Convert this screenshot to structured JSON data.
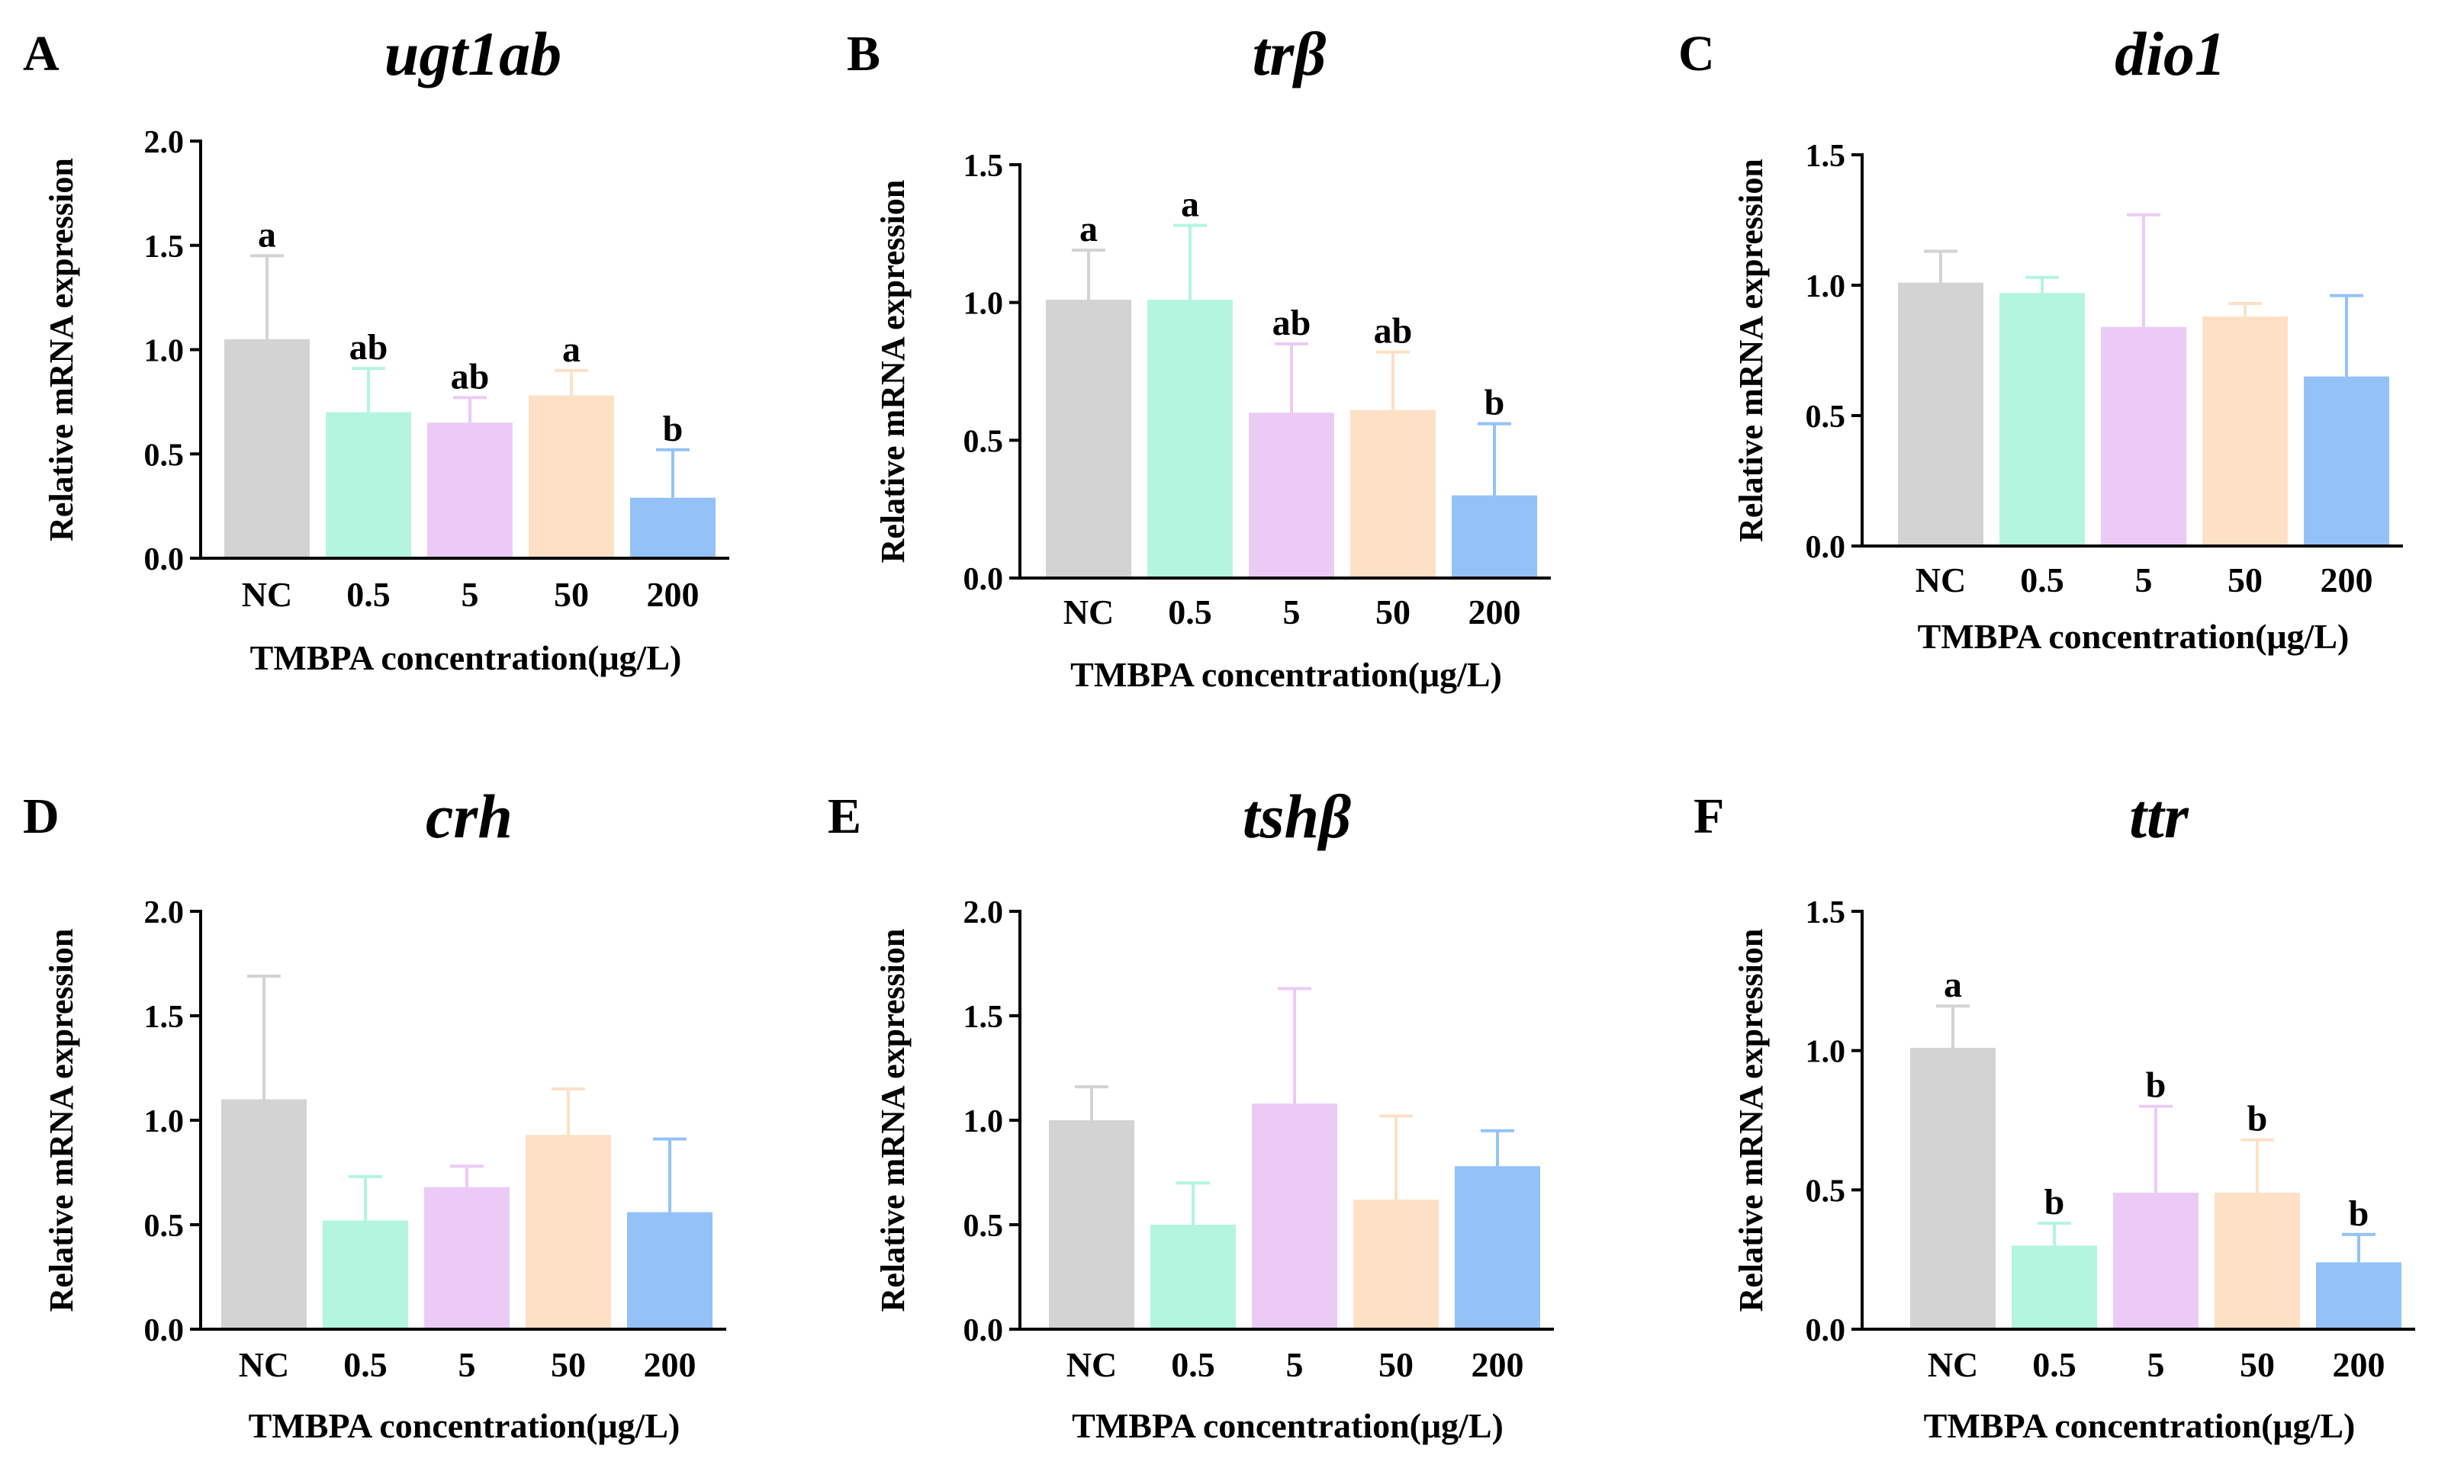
{
  "figure": {
    "colors": [
      "#d3d3d3",
      "#b3f5df",
      "#ebcbf6",
      "#fde0c6",
      "#94c2f8"
    ],
    "panels": [
      {
        "label": "A",
        "title": "ugt1ab"
      },
      {
        "label": "B",
        "title": "trβ"
      },
      {
        "label": "C",
        "title": "dio1"
      },
      {
        "label": "D",
        "title": "crh"
      },
      {
        "label": "E",
        "title": "tshβ"
      },
      {
        "label": "F",
        "title": "ttr"
      }
    ]
  },
  "chart_data": [
    {
      "type": "bar",
      "title": "ugt1ab",
      "categories": [
        "NC",
        "0.5",
        "5",
        "50",
        "200"
      ],
      "values": [
        1.05,
        0.7,
        0.65,
        0.78,
        0.29
      ],
      "errors": [
        0.4,
        0.21,
        0.12,
        0.12,
        0.23
      ],
      "significance": [
        "a",
        "ab",
        "ab",
        "a",
        "b"
      ],
      "xlabel": "TMBPA concentration(μg/L)",
      "ylabel": "Relative mRNA expression",
      "ylim": [
        0,
        2.0
      ],
      "yticks": [
        "0.0",
        "0.5",
        "1.0",
        "1.5",
        "2.0"
      ]
    },
    {
      "type": "bar",
      "title": "trβ",
      "categories": [
        "NC",
        "0.5",
        "5",
        "50",
        "200"
      ],
      "values": [
        1.01,
        1.01,
        0.6,
        0.61,
        0.3
      ],
      "errors": [
        0.18,
        0.27,
        0.25,
        0.21,
        0.26
      ],
      "significance": [
        "a",
        "a",
        "ab",
        "ab",
        "b"
      ],
      "xlabel": "TMBPA concentration(μg/L)",
      "ylabel": "Relative mRNA expression",
      "ylim": [
        0,
        1.5
      ],
      "yticks": [
        "0.0",
        "0.5",
        "1.0",
        "1.5"
      ]
    },
    {
      "type": "bar",
      "title": "dio1",
      "categories": [
        "NC",
        "0.5",
        "5",
        "50",
        "200"
      ],
      "values": [
        1.01,
        0.97,
        0.84,
        0.88,
        0.65
      ],
      "errors": [
        0.12,
        0.06,
        0.43,
        0.05,
        0.31
      ],
      "significance": [
        "",
        "",
        "",
        "",
        ""
      ],
      "xlabel": "TMBPA concentration(μg/L)",
      "ylabel": "Relative mRNA expression",
      "ylim": [
        0,
        1.5
      ],
      "yticks": [
        "0.0",
        "0.5",
        "1.0",
        "1.5"
      ]
    },
    {
      "type": "bar",
      "title": "crh",
      "categories": [
        "NC",
        "0.5",
        "5",
        "50",
        "200"
      ],
      "values": [
        1.1,
        0.52,
        0.68,
        0.93,
        0.56
      ],
      "errors": [
        0.59,
        0.21,
        0.1,
        0.22,
        0.35
      ],
      "significance": [
        "",
        "",
        "",
        "",
        ""
      ],
      "xlabel": "TMBPA concentration(μg/L)",
      "ylabel": "Relative mRNA expression",
      "ylim": [
        0,
        2.0
      ],
      "yticks": [
        "0.0",
        "0.5",
        "1.0",
        "1.5",
        "2.0"
      ]
    },
    {
      "type": "bar",
      "title": "tshβ",
      "categories": [
        "NC",
        "0.5",
        "5",
        "50",
        "200"
      ],
      "values": [
        1.0,
        0.5,
        1.08,
        0.62,
        0.78
      ],
      "errors": [
        0.16,
        0.2,
        0.55,
        0.4,
        0.17
      ],
      "significance": [
        "",
        "",
        "",
        "",
        ""
      ],
      "xlabel": "TMBPA concentration(μg/L)",
      "ylabel": "Relative mRNA expression",
      "ylim": [
        0,
        2.0
      ],
      "yticks": [
        "0.0",
        "0.5",
        "1.0",
        "1.5",
        "2.0"
      ]
    },
    {
      "type": "bar",
      "title": "ttr",
      "categories": [
        "NC",
        "0.5",
        "5",
        "50",
        "200"
      ],
      "values": [
        1.01,
        0.3,
        0.49,
        0.49,
        0.24
      ],
      "errors": [
        0.15,
        0.08,
        0.31,
        0.19,
        0.1
      ],
      "significance": [
        "a",
        "b",
        "b",
        "b",
        "b"
      ],
      "xlabel": "TMBPA concentration(μg/L)",
      "ylabel": "Relative mRNA expression",
      "ylim": [
        0,
        1.5
      ],
      "yticks": [
        "0.0",
        "0.5",
        "1.0",
        "1.5"
      ]
    }
  ]
}
